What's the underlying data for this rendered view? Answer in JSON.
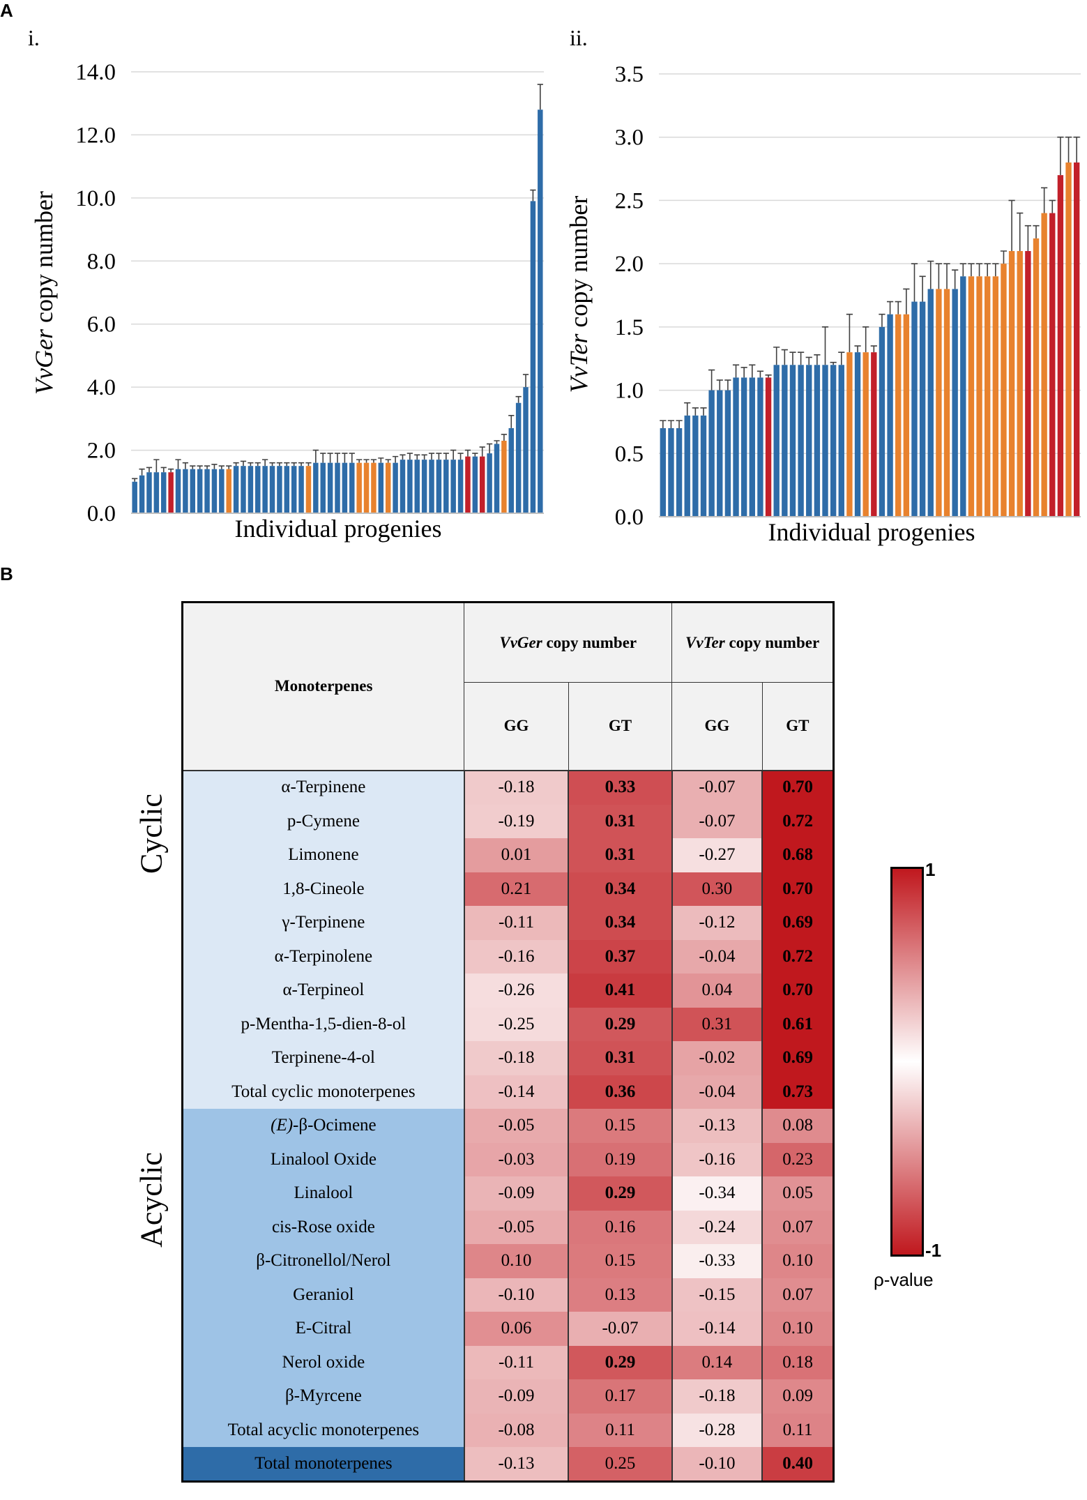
{
  "panel_a_label": "A",
  "panel_b_label": "B",
  "colors": {
    "blue": "#2e6ca8",
    "orange": "#e8822e",
    "red": "#c2202a"
  },
  "chart_data": [
    {
      "type": "bar",
      "sub_label": "i.",
      "ylabel_italic": "VvGer",
      "ylabel_rest": " copy number",
      "xlabel": "Individual progenies",
      "ylim": [
        0,
        14
      ],
      "yticks": [
        "0.0",
        "2.0",
        "4.0",
        "6.0",
        "8.0",
        "10.0",
        "12.0",
        "14.0"
      ],
      "grid": true,
      "values": [
        1.0,
        1.2,
        1.3,
        1.3,
        1.3,
        1.3,
        1.4,
        1.4,
        1.4,
        1.4,
        1.4,
        1.4,
        1.4,
        1.4,
        1.5,
        1.5,
        1.5,
        1.5,
        1.5,
        1.5,
        1.5,
        1.5,
        1.5,
        1.5,
        1.5,
        1.6,
        1.6,
        1.6,
        1.6,
        1.6,
        1.6,
        1.6,
        1.6,
        1.6,
        1.6,
        1.6,
        1.6,
        1.7,
        1.7,
        1.7,
        1.7,
        1.7,
        1.7,
        1.7,
        1.7,
        1.7,
        1.8,
        1.8,
        1.8,
        1.9,
        2.2,
        2.3,
        2.7,
        3.5,
        4.0,
        9.9,
        12.8
      ],
      "errors": [
        0.1,
        0.2,
        0.15,
        0.4,
        0.15,
        0.1,
        0.3,
        0.2,
        0.1,
        0.1,
        0.1,
        0.15,
        0.1,
        0.1,
        0.1,
        0.15,
        0.1,
        0.1,
        0.2,
        0.1,
        0.1,
        0.1,
        0.1,
        0.1,
        0.1,
        0.4,
        0.3,
        0.3,
        0.3,
        0.3,
        0.3,
        0.1,
        0.1,
        0.1,
        0.15,
        0.1,
        0.2,
        0.15,
        0.2,
        0.15,
        0.15,
        0.2,
        0.2,
        0.2,
        0.3,
        0.2,
        0.2,
        0.1,
        0.3,
        0.3,
        0.1,
        0.2,
        0.4,
        0.2,
        0.4,
        0.35,
        0.8
      ],
      "colors": [
        "blue",
        "blue",
        "blue",
        "blue",
        "blue",
        "red",
        "blue",
        "blue",
        "blue",
        "blue",
        "blue",
        "blue",
        "blue",
        "orange",
        "blue",
        "blue",
        "blue",
        "blue",
        "blue",
        "blue",
        "blue",
        "blue",
        "blue",
        "blue",
        "orange",
        "blue",
        "blue",
        "blue",
        "blue",
        "blue",
        "blue",
        "orange",
        "orange",
        "orange",
        "blue",
        "orange",
        "blue",
        "blue",
        "blue",
        "blue",
        "blue",
        "blue",
        "blue",
        "blue",
        "blue",
        "blue",
        "red",
        "blue",
        "red",
        "blue",
        "blue",
        "orange",
        "blue",
        "blue",
        "blue",
        "blue",
        "blue"
      ]
    },
    {
      "type": "bar",
      "sub_label": "ii.",
      "ylabel_italic": "VvTer",
      "ylabel_rest": " copy number",
      "xlabel": "Individual progenies",
      "ylim": [
        0,
        3.5
      ],
      "yticks": [
        "0.0",
        "0.5",
        "1.0",
        "1.5",
        "2.0",
        "2.5",
        "3.0",
        "3.5"
      ],
      "grid": true,
      "values": [
        0.7,
        0.7,
        0.7,
        0.8,
        0.8,
        0.8,
        1.0,
        1.0,
        1.0,
        1.1,
        1.1,
        1.1,
        1.1,
        1.1,
        1.2,
        1.2,
        1.2,
        1.2,
        1.2,
        1.2,
        1.2,
        1.2,
        1.2,
        1.3,
        1.3,
        1.3,
        1.3,
        1.5,
        1.6,
        1.6,
        1.6,
        1.7,
        1.7,
        1.8,
        1.8,
        1.8,
        1.8,
        1.9,
        1.9,
        1.9,
        1.9,
        1.9,
        2.0,
        2.1,
        2.1,
        2.1,
        2.2,
        2.4,
        2.4,
        2.7,
        2.8,
        2.8
      ],
      "errors": [
        0.06,
        0.06,
        0.06,
        0.1,
        0.06,
        0.06,
        0.16,
        0.08,
        0.08,
        0.1,
        0.08,
        0.1,
        0.05,
        0.02,
        0.14,
        0.12,
        0.1,
        0.1,
        0.06,
        0.08,
        0.3,
        0.02,
        0.1,
        0.3,
        0.05,
        0.2,
        0.05,
        0.1,
        0.1,
        0.1,
        0.2,
        0.3,
        0.2,
        0.22,
        0.2,
        0.2,
        0.15,
        0.1,
        0.1,
        0.1,
        0.1,
        0.1,
        0.1,
        0.4,
        0.3,
        0.2,
        0.1,
        0.2,
        0.1,
        0.3,
        0.2,
        0.2
      ],
      "colors": [
        "blue",
        "blue",
        "blue",
        "blue",
        "blue",
        "blue",
        "blue",
        "blue",
        "blue",
        "blue",
        "blue",
        "blue",
        "blue",
        "red",
        "blue",
        "blue",
        "blue",
        "blue",
        "blue",
        "blue",
        "blue",
        "blue",
        "blue",
        "orange",
        "blue",
        "orange",
        "red",
        "blue",
        "blue",
        "orange",
        "orange",
        "blue",
        "blue",
        "blue",
        "orange",
        "orange",
        "blue",
        "blue",
        "orange",
        "orange",
        "orange",
        "orange",
        "orange",
        "orange",
        "orange",
        "red",
        "orange",
        "orange",
        "red",
        "red",
        "orange",
        "red"
      ]
    },
    {
      "type": "heatmap",
      "header_main": "Monoterpenes",
      "col_group1_italic": "VvGer",
      "col_group1_rest": " copy number",
      "col_group2_italic": "VvTer",
      "col_group2_rest": " copy number",
      "sub_cols": [
        "GG",
        "GT",
        "GG",
        "GT"
      ],
      "group_cyclic": "Cyclic",
      "group_acyclic": "Acyclic",
      "legend_top": "1",
      "legend_bottom": "-1",
      "legend_caption": "ρ-value",
      "rows": [
        {
          "name": "α-Terpinene",
          "group": "cyclic",
          "values": [
            "-0.18",
            "0.33",
            "-0.07",
            "0.70"
          ],
          "bold": [
            false,
            true,
            false,
            true
          ]
        },
        {
          "name": "p-Cymene",
          "group": "cyclic",
          "values": [
            "-0.19",
            "0.31",
            "-0.07",
            "0.72"
          ],
          "bold": [
            false,
            true,
            false,
            true
          ]
        },
        {
          "name": "Limonene",
          "group": "cyclic",
          "values": [
            "0.01",
            "0.31",
            "-0.27",
            "0.68"
          ],
          "bold": [
            false,
            true,
            false,
            true
          ]
        },
        {
          "name": "1,8-Cineole",
          "group": "cyclic",
          "values": [
            "0.21",
            "0.34",
            "0.30",
            "0.70"
          ],
          "bold": [
            false,
            true,
            false,
            true
          ]
        },
        {
          "name": "γ-Terpinene",
          "group": "cyclic",
          "values": [
            "-0.11",
            "0.34",
            "-0.12",
            "0.69"
          ],
          "bold": [
            false,
            true,
            false,
            true
          ]
        },
        {
          "name": "α-Terpinolene",
          "group": "cyclic",
          "values": [
            "-0.16",
            "0.37",
            "-0.04",
            "0.72"
          ],
          "bold": [
            false,
            true,
            false,
            true
          ]
        },
        {
          "name": "α-Terpineol",
          "group": "cyclic",
          "values": [
            "-0.26",
            "0.41",
            "0.04",
            "0.70"
          ],
          "bold": [
            false,
            true,
            false,
            true
          ]
        },
        {
          "name": "p-Mentha-1,5-dien-8-ol",
          "group": "cyclic",
          "values": [
            "-0.25",
            "0.29",
            "0.31",
            "0.61"
          ],
          "bold": [
            false,
            true,
            false,
            true
          ]
        },
        {
          "name": "Terpinene-4-ol",
          "group": "cyclic",
          "values": [
            "-0.18",
            "0.31",
            "-0.02",
            "0.69"
          ],
          "bold": [
            false,
            true,
            false,
            true
          ]
        },
        {
          "name": "Total cyclic monoterpenes",
          "group": "cyclic",
          "values": [
            "-0.14",
            "0.36",
            "-0.04",
            "0.73"
          ],
          "bold": [
            false,
            true,
            false,
            true
          ]
        },
        {
          "name_italic": "(E)",
          "name": "-β-Ocimene",
          "group": "acyclic",
          "values": [
            "-0.05",
            "0.15",
            "-0.13",
            "0.08"
          ],
          "bold": [
            false,
            false,
            false,
            false
          ]
        },
        {
          "name": "Linalool Oxide",
          "group": "acyclic",
          "values": [
            "-0.03",
            "0.19",
            "-0.16",
            "0.23"
          ],
          "bold": [
            false,
            false,
            false,
            false
          ]
        },
        {
          "name": "Linalool",
          "group": "acyclic",
          "values": [
            "-0.09",
            "0.29",
            "-0.34",
            "0.05"
          ],
          "bold": [
            false,
            true,
            false,
            false
          ]
        },
        {
          "name": "cis-Rose oxide",
          "group": "acyclic",
          "values": [
            "-0.05",
            "0.16",
            "-0.24",
            "0.07"
          ],
          "bold": [
            false,
            false,
            false,
            false
          ]
        },
        {
          "name": "β-Citronellol/Nerol",
          "group": "acyclic",
          "values": [
            "0.10",
            "0.15",
            "-0.33",
            "0.10"
          ],
          "bold": [
            false,
            false,
            false,
            false
          ]
        },
        {
          "name": "Geraniol",
          "group": "acyclic",
          "values": [
            "-0.10",
            "0.13",
            "-0.15",
            "0.07"
          ],
          "bold": [
            false,
            false,
            false,
            false
          ]
        },
        {
          "name": "E-Citral",
          "group": "acyclic",
          "values": [
            "0.06",
            "-0.07",
            "-0.14",
            "0.10"
          ],
          "bold": [
            false,
            false,
            false,
            false
          ]
        },
        {
          "name": "Nerol oxide",
          "group": "acyclic",
          "values": [
            "-0.11",
            "0.29",
            "0.14",
            "0.18"
          ],
          "bold": [
            false,
            true,
            false,
            false
          ]
        },
        {
          "name": "β-Myrcene",
          "group": "acyclic",
          "values": [
            "-0.09",
            "0.17",
            "-0.18",
            "0.09"
          ],
          "bold": [
            false,
            false,
            false,
            false
          ]
        },
        {
          "name": "Total acyclic monoterpenes",
          "group": "acyclic",
          "values": [
            "-0.08",
            "0.11",
            "-0.28",
            "0.11"
          ],
          "bold": [
            false,
            false,
            false,
            false
          ]
        },
        {
          "name": "Total monoterpenes",
          "group": "total",
          "values": [
            "-0.13",
            "0.25",
            "-0.10",
            "0.40"
          ],
          "bold": [
            false,
            false,
            false,
            true
          ]
        }
      ]
    }
  ]
}
